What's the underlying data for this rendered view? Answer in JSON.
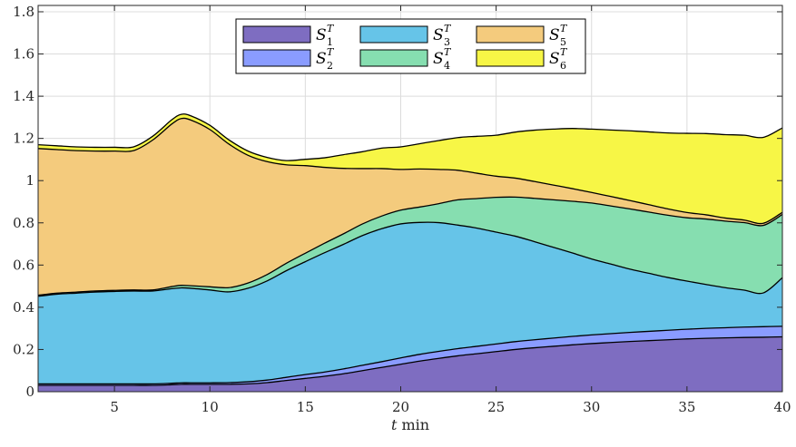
{
  "chart_data": {
    "type": "area",
    "stacked": true,
    "title": "",
    "xlabel": "t min",
    "xlabel_italic_part": "t",
    "xlabel_unit": "min",
    "ylabel": "",
    "xlim": [
      1,
      40
    ],
    "ylim": [
      0,
      1.83
    ],
    "xticks": [
      5,
      10,
      15,
      20,
      25,
      30,
      35,
      40
    ],
    "yticks": [
      0,
      0.2,
      0.4,
      0.6,
      0.8,
      1,
      1.2,
      1.4,
      1.6,
      1.8
    ],
    "ytick_labels": [
      "0",
      "0.2",
      "0.4",
      "0.6",
      "0.8",
      "1",
      "1.2",
      "1.4",
      "1.6",
      "1.8"
    ],
    "grid": true,
    "legend_position": "top-center",
    "legend_columns": 3,
    "x": [
      1,
      2,
      3,
      4,
      5,
      6,
      7,
      8,
      8.5,
      9,
      10,
      11,
      12,
      13,
      14,
      15,
      16,
      17,
      18,
      19,
      20,
      21,
      22,
      23,
      24,
      25,
      26,
      27,
      28,
      29,
      30,
      31,
      32,
      33,
      34,
      35,
      36,
      37,
      38,
      39,
      40
    ],
    "series": [
      {
        "name": "S1T",
        "base": "S",
        "sub": "1",
        "sup": "T",
        "color": "#7e6dc1",
        "values": [
          0.03,
          0.03,
          0.03,
          0.03,
          0.03,
          0.03,
          0.03,
          0.033,
          0.035,
          0.035,
          0.035,
          0.035,
          0.037,
          0.043,
          0.053,
          0.063,
          0.073,
          0.085,
          0.1,
          0.115,
          0.13,
          0.145,
          0.158,
          0.17,
          0.18,
          0.19,
          0.2,
          0.208,
          0.215,
          0.222,
          0.228,
          0.233,
          0.238,
          0.242,
          0.246,
          0.25,
          0.253,
          0.255,
          0.257,
          0.258,
          0.26
        ]
      },
      {
        "name": "S2T",
        "base": "S",
        "sub": "2",
        "sup": "T",
        "color": "#8a9cff",
        "values": [
          0.007,
          0.007,
          0.007,
          0.007,
          0.007,
          0.007,
          0.007,
          0.007,
          0.007,
          0.007,
          0.007,
          0.008,
          0.01,
          0.012,
          0.015,
          0.018,
          0.02,
          0.023,
          0.025,
          0.027,
          0.03,
          0.032,
          0.033,
          0.034,
          0.035,
          0.036,
          0.037,
          0.038,
          0.039,
          0.04,
          0.041,
          0.042,
          0.043,
          0.044,
          0.045,
          0.046,
          0.047,
          0.048,
          0.049,
          0.05,
          0.05
        ]
      },
      {
        "name": "S3T",
        "base": "S",
        "sub": "3",
        "sup": "T",
        "color": "#66c4e8",
        "values": [
          0.415,
          0.425,
          0.43,
          0.435,
          0.438,
          0.44,
          0.44,
          0.448,
          0.45,
          0.448,
          0.44,
          0.43,
          0.443,
          0.47,
          0.505,
          0.535,
          0.565,
          0.59,
          0.615,
          0.63,
          0.635,
          0.625,
          0.61,
          0.585,
          0.56,
          0.53,
          0.5,
          0.465,
          0.43,
          0.395,
          0.36,
          0.33,
          0.3,
          0.275,
          0.25,
          0.228,
          0.208,
          0.19,
          0.175,
          0.16,
          0.23
        ]
      },
      {
        "name": "S4T",
        "base": "S",
        "sub": "4",
        "sup": "T",
        "color": "#86deb0",
        "values": [
          0.005,
          0.005,
          0.005,
          0.005,
          0.005,
          0.005,
          0.005,
          0.01,
          0.012,
          0.012,
          0.015,
          0.02,
          0.025,
          0.03,
          0.035,
          0.04,
          0.045,
          0.05,
          0.055,
          0.06,
          0.065,
          0.073,
          0.09,
          0.12,
          0.14,
          0.165,
          0.185,
          0.205,
          0.225,
          0.245,
          0.265,
          0.275,
          0.285,
          0.29,
          0.295,
          0.3,
          0.31,
          0.315,
          0.32,
          0.32,
          0.3
        ]
      },
      {
        "name": "S5T",
        "base": "S",
        "sub": "5",
        "sup": "T",
        "color": "#f4cb7d",
        "values": [
          0.695,
          0.68,
          0.67,
          0.663,
          0.66,
          0.66,
          0.71,
          0.77,
          0.79,
          0.785,
          0.745,
          0.68,
          0.605,
          0.535,
          0.467,
          0.415,
          0.36,
          0.31,
          0.262,
          0.225,
          0.193,
          0.18,
          0.162,
          0.14,
          0.12,
          0.1,
          0.09,
          0.08,
          0.07,
          0.06,
          0.05,
          0.045,
          0.04,
          0.035,
          0.03,
          0.025,
          0.02,
          0.015,
          0.012,
          0.01,
          0.01
        ]
      },
      {
        "name": "S6T",
        "base": "S",
        "sub": "6",
        "sup": "T",
        "color": "#f7f646",
        "values": [
          0.018,
          0.018,
          0.018,
          0.018,
          0.018,
          0.018,
          0.018,
          0.02,
          0.02,
          0.02,
          0.02,
          0.02,
          0.02,
          0.02,
          0.02,
          0.03,
          0.045,
          0.065,
          0.08,
          0.097,
          0.107,
          0.12,
          0.137,
          0.155,
          0.175,
          0.194,
          0.218,
          0.243,
          0.265,
          0.285,
          0.3,
          0.315,
          0.33,
          0.345,
          0.36,
          0.375,
          0.385,
          0.395,
          0.402,
          0.407,
          0.4
        ]
      }
    ]
  }
}
